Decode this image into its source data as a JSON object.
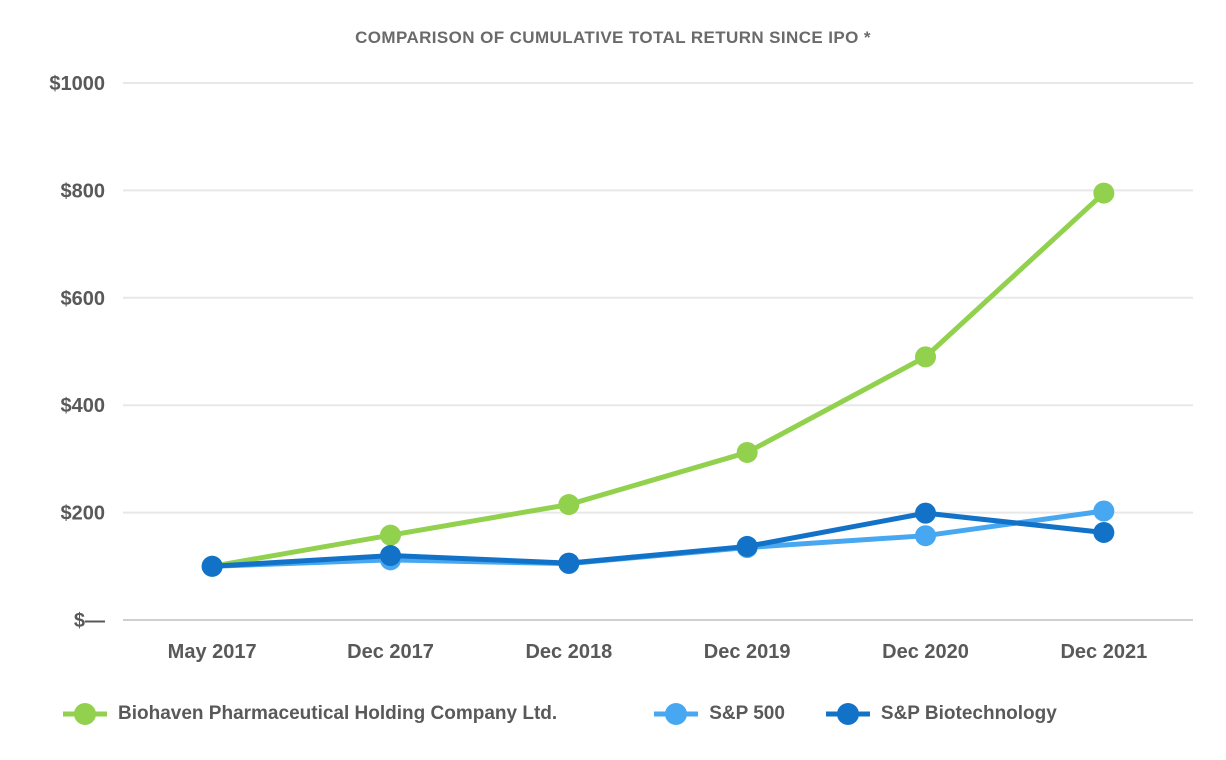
{
  "chart_data": {
    "type": "line",
    "title": "COMPARISON OF CUMULATIVE TOTAL RETURN SINCE IPO *",
    "categories": [
      "May 2017",
      "Dec 2017",
      "Dec 2018",
      "Dec 2019",
      "Dec 2020",
      "Dec 2021"
    ],
    "series": [
      {
        "name": "Biohaven Pharmaceutical Holding Company Ltd.",
        "color": "#92d14e",
        "values": [
          100,
          158,
          215,
          312,
          490,
          795
        ]
      },
      {
        "name": "S&P 500",
        "color": "#47a7f0",
        "values": [
          100,
          112,
          105,
          135,
          157,
          203
        ]
      },
      {
        "name": "S&P Biotechnology",
        "color": "#1272c8",
        "values": [
          100,
          120,
          106,
          137,
          199,
          163
        ]
      }
    ],
    "y_axis": {
      "tick_values": [
        0,
        200,
        400,
        600,
        800,
        1000
      ],
      "tick_labels": [
        "$—",
        "$200",
        "$400",
        "$600",
        "$800",
        "$1000"
      ],
      "range": [
        0,
        1000
      ]
    },
    "x_axis": {
      "tick_labels": [
        "May 2017",
        "Dec 2017",
        "Dec 2018",
        "Dec 2019",
        "Dec 2020",
        "Dec 2021"
      ]
    },
    "grid": true,
    "legend_position": "bottom",
    "colors": {
      "gridline": "#e8e8e8",
      "axis_line": "#cfcfcf",
      "tick_text": "#595959",
      "title_text": "#6a6a6a"
    }
  }
}
